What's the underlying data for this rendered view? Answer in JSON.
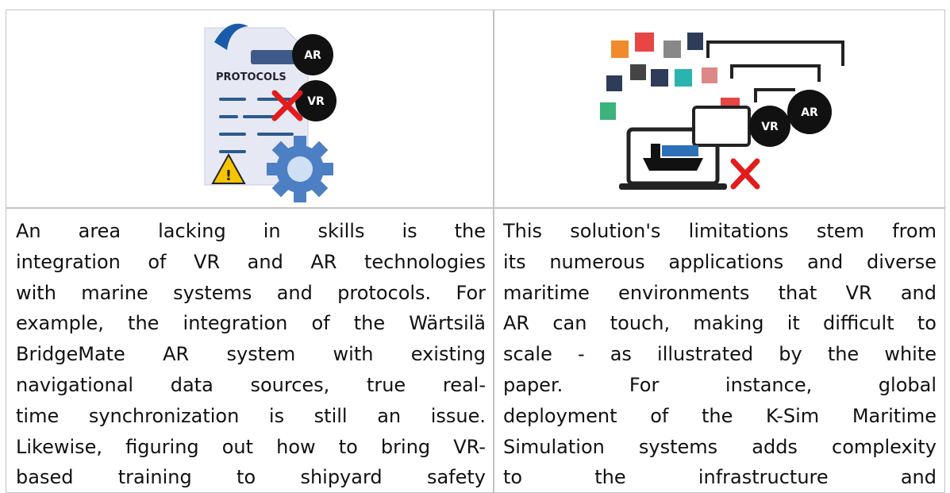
{
  "table": {
    "rows": [
      [
        {
          "icon": {
            "doc_label": "PROTOCOLS",
            "badges": [
              "AR",
              "VR"
            ]
          }
        },
        {
          "icon": {
            "badges": [
              "VR",
              "AR"
            ]
          }
        }
      ],
      [
        {
          "lines": [
            "An area lacking in skills is the",
            "integration of VR and AR technologies",
            "with marine systems and protocols. For",
            "example, the integration of the Wärtsilä",
            "BridgeMate AR system with existing",
            "navigational data sources, true real-",
            "time synchronization is still an issue.",
            "Likewise, figuring out how to bring VR-",
            "based training to shipyard safety"
          ]
        },
        {
          "lines": [
            "This solution's limitations stem from",
            "its numerous applications and diverse",
            "maritime environments that VR and",
            "AR can touch, making it difficult to",
            "scale - as illustrated by the white",
            "paper. For instance, global",
            "deployment of the K-Sim Maritime",
            "Simulation systems adds complexity",
            "to the infrastructure and"
          ]
        }
      ]
    ]
  }
}
